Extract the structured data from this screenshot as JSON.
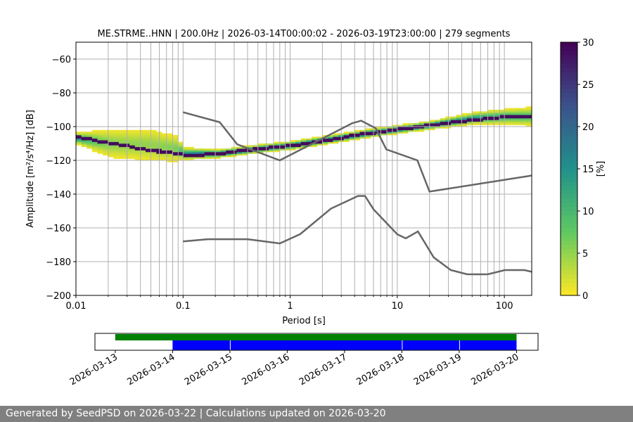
{
  "footer": "Generated by SeedPSD on 2026-03-22 | Calculations updated on 2026-03-20",
  "chart_data": [
    {
      "type": "heatmap",
      "title": "ME.STRME..HNN | 200.0Hz | 2026-03-14T00:00:02 - 2026-03-19T23:00:00 | 279 segments",
      "xlabel": "Period [s]",
      "ylabel": "Amplitude [m²/s⁴/Hz] [dB]",
      "xscale": "log",
      "xlim": [
        0.01,
        180
      ],
      "ylim": [
        -200,
        -50
      ],
      "xticks": [
        {
          "v": 0.01,
          "label": "0.01"
        },
        {
          "v": 0.1,
          "label": "0.1"
        },
        {
          "v": 1,
          "label": "1"
        },
        {
          "v": 10,
          "label": "10"
        },
        {
          "v": 100,
          "label": "100"
        }
      ],
      "yticks": [
        -200,
        -180,
        -160,
        -140,
        -120,
        -100,
        -80,
        -60
      ],
      "grid": true,
      "colorbar": {
        "label": "[%]",
        "range": [
          0,
          30
        ],
        "ticks": [
          0,
          5,
          10,
          15,
          20,
          25,
          30
        ],
        "colormap": "viridis_r",
        "colors": [
          "#fde725",
          "#5ec962",
          "#21918c",
          "#3b528b",
          "#440154"
        ]
      },
      "pdf": {
        "periods": [
          0.01,
          0.02,
          0.05,
          0.08,
          0.1,
          0.2,
          0.5,
          1,
          2,
          5,
          10,
          20,
          50,
          100,
          180
        ],
        "center_db": [
          -107,
          -110,
          -111,
          -113,
          -116,
          -116,
          -113,
          -111,
          -108,
          -104,
          -101.5,
          -99,
          -95,
          -94,
          -94
        ],
        "mode_db": [
          -106,
          -110,
          -114,
          -116,
          -117,
          -116,
          -113,
          -111,
          -108,
          -104,
          -101.5,
          -99,
          -96,
          -94,
          -94
        ],
        "spread_db": [
          1.5,
          4,
          4.5,
          3.5,
          1.5,
          1,
          1,
          1,
          1,
          1,
          1,
          1,
          1.5,
          2,
          2.5
        ]
      },
      "noise_models": [
        {
          "name": "NHNM",
          "color": "#666666",
          "periods": [
            0.1,
            0.22,
            0.32,
            0.8,
            3.8,
            4.6,
            6.3,
            7.9,
            15.4,
            20,
            180
          ],
          "db": [
            -91.5,
            -97.4,
            -110.5,
            -120,
            -98,
            -96.5,
            -101,
            -113.5,
            -120,
            -138.5,
            -129
          ]
        },
        {
          "name": "NLNM",
          "color": "#666666",
          "periods": [
            0.1,
            0.17,
            0.4,
            0.8,
            1.24,
            2.4,
            4.3,
            5,
            6,
            10,
            12,
            15.6,
            21.9,
            31.6,
            45,
            70,
            101,
            154,
            180
          ],
          "db": [
            -168,
            -166.7,
            -166.7,
            -169.2,
            -163.7,
            -148.6,
            -141.1,
            -141.1,
            -149,
            -163.8,
            -166.2,
            -162.1,
            -177.5,
            -185,
            -187.5,
            -187.5,
            -185,
            -185,
            -186
          ]
        }
      ]
    },
    {
      "type": "timeline",
      "ticks": [
        "2026-03-13",
        "2026-03-14",
        "2026-03-15",
        "2026-03-16",
        "2026-03-17",
        "2026-03-18",
        "2026-03-19",
        "2026-03-20"
      ],
      "xlim": [
        "2026-03-12T15:30",
        "2026-03-20T09:00"
      ],
      "available_data": {
        "color": "#008000",
        "spans": [
          [
            "2026-03-13",
            "2026-03-20"
          ]
        ]
      },
      "used_data": {
        "color": "#0000ff",
        "spans": [
          [
            "2026-03-14",
            "2026-03-15"
          ],
          [
            "2026-03-15",
            "2026-03-18"
          ],
          [
            "2026-03-18",
            "2026-03-19"
          ],
          [
            "2026-03-19",
            "2026-03-20"
          ]
        ]
      }
    }
  ]
}
